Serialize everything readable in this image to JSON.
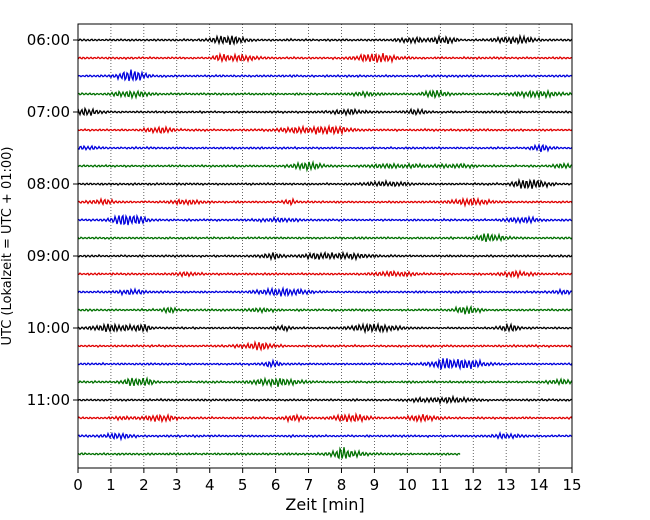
{
  "chart_data": {
    "type": "line",
    "subtype": "helicorder / seismogram drum plot",
    "xlabel": "Zeit  [min]",
    "ylabel": "UTC (Lokalzeit = UTC + 01:00)",
    "xlim": [
      0,
      15
    ],
    "x_ticks": [
      "0",
      "1",
      "2",
      "3",
      "4",
      "5",
      "6",
      "7",
      "8",
      "9",
      "10",
      "11",
      "12",
      "13",
      "14",
      "15"
    ],
    "y_tick_labels": [
      "06:00",
      "07:00",
      "08:00",
      "09:00",
      "10:00",
      "11:00"
    ],
    "grid": "vertical dotted lines at each minute",
    "trace_colors": [
      "#000000",
      "#e00000",
      "#0000dd",
      "#007000"
    ],
    "row_start_times": [
      "06:00",
      "06:15",
      "06:30",
      "06:45",
      "07:00",
      "07:15",
      "07:30",
      "07:45",
      "08:00",
      "08:15",
      "08:30",
      "08:45",
      "09:00",
      "09:15",
      "09:30",
      "09:45",
      "10:00",
      "10:15",
      "10:30",
      "10:45",
      "11:00",
      "11:15",
      "11:30",
      "11:45"
    ],
    "row_minutes_per_line": 15,
    "last_row_end_minute": 11.6
  }
}
